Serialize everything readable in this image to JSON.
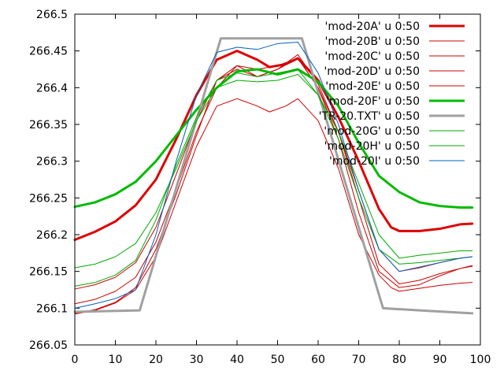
{
  "chart_data": {
    "type": "line",
    "title": "",
    "xlabel": "",
    "ylabel": "",
    "xlim": [
      0,
      100
    ],
    "ylim": [
      266.05,
      266.5
    ],
    "grid": false,
    "legend_position": "top-right",
    "xticks": [
      0,
      10,
      20,
      30,
      40,
      50,
      60,
      70,
      80,
      90,
      100
    ],
    "yticks": [
      266.05,
      266.1,
      266.15,
      266.2,
      266.25,
      266.3,
      266.35,
      266.4,
      266.45,
      266.5
    ],
    "series": [
      {
        "name": "'mod-20A' u 0:50",
        "color": "#dd0000",
        "weight": "bold",
        "points": [
          [
            0,
            266.193
          ],
          [
            5,
            266.204
          ],
          [
            10,
            266.218
          ],
          [
            15,
            266.24
          ],
          [
            20,
            266.275
          ],
          [
            25,
            266.33
          ],
          [
            30,
            266.39
          ],
          [
            35,
            266.438
          ],
          [
            40,
            266.45
          ],
          [
            45,
            266.438
          ],
          [
            48,
            266.428
          ],
          [
            52,
            266.432
          ],
          [
            55,
            266.44
          ],
          [
            60,
            266.41
          ],
          [
            65,
            266.36
          ],
          [
            70,
            266.3
          ],
          [
            75,
            266.235
          ],
          [
            78,
            266.21
          ],
          [
            80,
            266.205
          ],
          [
            85,
            266.205
          ],
          [
            90,
            266.208
          ],
          [
            95,
            266.214
          ],
          [
            98,
            266.215
          ]
        ]
      },
      {
        "name": "'mod-20B' u 0:50",
        "color": "#cc0000",
        "weight": "normal",
        "points": [
          [
            0,
            266.093
          ],
          [
            5,
            266.098
          ],
          [
            10,
            266.108
          ],
          [
            15,
            266.128
          ],
          [
            20,
            266.18
          ],
          [
            25,
            266.255
          ],
          [
            30,
            266.335
          ],
          [
            35,
            266.41
          ],
          [
            40,
            266.43
          ],
          [
            45,
            266.425
          ],
          [
            50,
            266.43
          ],
          [
            55,
            266.44
          ],
          [
            60,
            266.4
          ],
          [
            65,
            266.33
          ],
          [
            70,
            266.23
          ],
          [
            75,
            266.15
          ],
          [
            80,
            266.128
          ],
          [
            85,
            266.132
          ],
          [
            90,
            266.144
          ],
          [
            95,
            266.154
          ],
          [
            98,
            266.158
          ]
        ]
      },
      {
        "name": "'mod-20C' u 0:50",
        "color": "#cc0000",
        "weight": "normal",
        "points": [
          [
            0,
            266.106
          ],
          [
            5,
            266.112
          ],
          [
            10,
            266.123
          ],
          [
            15,
            266.142
          ],
          [
            20,
            266.19
          ],
          [
            25,
            266.262
          ],
          [
            30,
            266.34
          ],
          [
            35,
            266.4
          ],
          [
            40,
            266.43
          ],
          [
            45,
            266.415
          ],
          [
            50,
            266.425
          ],
          [
            55,
            266.445
          ],
          [
            60,
            266.405
          ],
          [
            65,
            266.34
          ],
          [
            70,
            266.25
          ],
          [
            75,
            266.16
          ],
          [
            80,
            266.133
          ],
          [
            85,
            266.138
          ],
          [
            90,
            266.147
          ],
          [
            95,
            266.154
          ],
          [
            98,
            266.157
          ]
        ]
      },
      {
        "name": "'mod-20D' u 0:50",
        "color": "#cc0000",
        "weight": "normal",
        "points": [
          [
            0,
            266.092
          ],
          [
            5,
            266.097
          ],
          [
            10,
            266.107
          ],
          [
            15,
            266.125
          ],
          [
            20,
            266.17
          ],
          [
            25,
            266.245
          ],
          [
            30,
            266.32
          ],
          [
            35,
            266.375
          ],
          [
            40,
            266.385
          ],
          [
            45,
            266.375
          ],
          [
            48,
            266.367
          ],
          [
            52,
            266.375
          ],
          [
            55,
            266.385
          ],
          [
            60,
            266.355
          ],
          [
            65,
            266.29
          ],
          [
            70,
            266.2
          ],
          [
            75,
            266.145
          ],
          [
            78,
            266.128
          ],
          [
            80,
            266.123
          ],
          [
            85,
            266.127
          ],
          [
            90,
            266.131
          ],
          [
            95,
            266.134
          ],
          [
            98,
            266.135
          ]
        ]
      },
      {
        "name": "'mod-20E' u 0:50",
        "color": "#cc0000",
        "weight": "normal",
        "points": [
          [
            0,
            266.126
          ],
          [
            5,
            266.132
          ],
          [
            10,
            266.142
          ],
          [
            15,
            266.162
          ],
          [
            20,
            266.21
          ],
          [
            25,
            266.282
          ],
          [
            30,
            266.355
          ],
          [
            35,
            266.41
          ],
          [
            40,
            266.425
          ],
          [
            45,
            266.415
          ],
          [
            50,
            266.425
          ],
          [
            55,
            266.44
          ],
          [
            60,
            266.4
          ],
          [
            65,
            266.34
          ],
          [
            70,
            266.26
          ],
          [
            75,
            266.18
          ],
          [
            80,
            266.15
          ],
          [
            85,
            266.155
          ],
          [
            90,
            266.162
          ],
          [
            95,
            266.168
          ],
          [
            98,
            266.17
          ]
        ]
      },
      {
        "name": "'mod-20F' u 0:50",
        "color": "#00bb00",
        "weight": "bold",
        "points": [
          [
            0,
            266.238
          ],
          [
            5,
            266.244
          ],
          [
            10,
            266.255
          ],
          [
            15,
            266.272
          ],
          [
            20,
            266.3
          ],
          [
            25,
            266.335
          ],
          [
            30,
            266.37
          ],
          [
            35,
            266.4
          ],
          [
            40,
            266.422
          ],
          [
            45,
            266.425
          ],
          [
            50,
            266.418
          ],
          [
            55,
            266.425
          ],
          [
            60,
            266.408
          ],
          [
            65,
            266.375
          ],
          [
            70,
            266.325
          ],
          [
            75,
            266.28
          ],
          [
            80,
            266.258
          ],
          [
            85,
            266.244
          ],
          [
            90,
            266.239
          ],
          [
            95,
            266.237
          ],
          [
            98,
            266.237
          ]
        ]
      },
      {
        "name": "'TR-20.TXT' u 0:50",
        "color": "#a0a0a0",
        "weight": "bold",
        "points": [
          [
            0,
            266.095
          ],
          [
            16,
            266.097
          ],
          [
            36,
            266.467
          ],
          [
            56,
            266.467
          ],
          [
            76,
            266.1
          ],
          [
            85,
            266.097
          ],
          [
            98,
            266.093
          ]
        ]
      },
      {
        "name": "'mod-20G' u 0:50",
        "color": "#00aa00",
        "weight": "normal",
        "points": [
          [
            0,
            266.155
          ],
          [
            5,
            266.16
          ],
          [
            10,
            266.17
          ],
          [
            15,
            266.188
          ],
          [
            20,
            266.23
          ],
          [
            25,
            266.29
          ],
          [
            30,
            266.355
          ],
          [
            35,
            266.4
          ],
          [
            40,
            266.41
          ],
          [
            45,
            266.408
          ],
          [
            50,
            266.41
          ],
          [
            55,
            266.418
          ],
          [
            60,
            266.39
          ],
          [
            65,
            266.34
          ],
          [
            70,
            266.27
          ],
          [
            75,
            266.2
          ],
          [
            80,
            266.168
          ],
          [
            85,
            266.172
          ],
          [
            90,
            266.175
          ],
          [
            95,
            266.178
          ],
          [
            98,
            266.178
          ]
        ]
      },
      {
        "name": "'mod-20H' u 0:50",
        "color": "#00aa00",
        "weight": "normal",
        "points": [
          [
            0,
            266.13
          ],
          [
            5,
            266.135
          ],
          [
            10,
            266.145
          ],
          [
            15,
            266.165
          ],
          [
            20,
            266.22
          ],
          [
            25,
            266.295
          ],
          [
            30,
            266.36
          ],
          [
            35,
            266.41
          ],
          [
            40,
            266.42
          ],
          [
            45,
            266.415
          ],
          [
            50,
            266.42
          ],
          [
            55,
            266.425
          ],
          [
            60,
            266.39
          ],
          [
            65,
            266.33
          ],
          [
            70,
            266.25
          ],
          [
            75,
            266.18
          ],
          [
            80,
            266.16
          ],
          [
            85,
            266.162
          ],
          [
            90,
            266.165
          ],
          [
            95,
            266.168
          ],
          [
            98,
            266.17
          ]
        ]
      },
      {
        "name": "'mod-20I' u 0:50",
        "color": "#0060c0",
        "weight": "normal",
        "points": [
          [
            0,
            266.1
          ],
          [
            5,
            266.106
          ],
          [
            10,
            266.113
          ],
          [
            15,
            266.125
          ],
          [
            20,
            266.2
          ],
          [
            25,
            266.3
          ],
          [
            30,
            266.39
          ],
          [
            35,
            266.448
          ],
          [
            40,
            266.455
          ],
          [
            45,
            266.452
          ],
          [
            50,
            266.46
          ],
          [
            55,
            266.462
          ],
          [
            60,
            266.42
          ],
          [
            65,
            266.35
          ],
          [
            70,
            266.26
          ],
          [
            75,
            266.18
          ],
          [
            80,
            266.15
          ],
          [
            85,
            266.156
          ],
          [
            90,
            266.162
          ],
          [
            95,
            266.168
          ],
          [
            98,
            266.17
          ]
        ]
      }
    ]
  }
}
